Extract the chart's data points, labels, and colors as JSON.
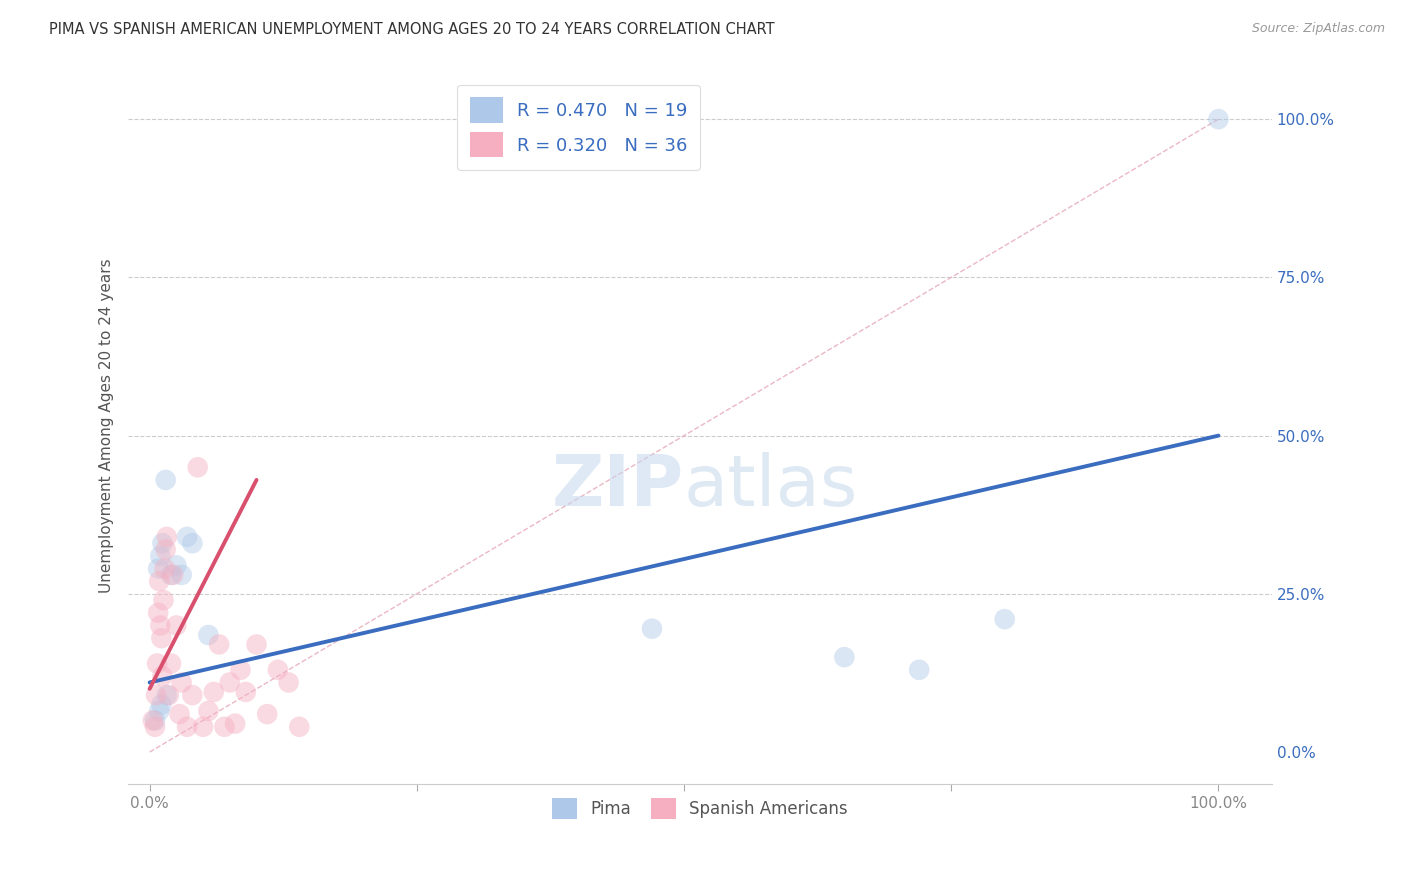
{
  "title": "PIMA VS SPANISH AMERICAN UNEMPLOYMENT AMONG AGES 20 TO 24 YEARS CORRELATION CHART",
  "source": "Source: ZipAtlas.com",
  "ylabel": "Unemployment Among Ages 20 to 24 years",
  "watermark_zip": "ZIP",
  "watermark_atlas": "atlas",
  "pima_R": 0.47,
  "pima_N": 19,
  "spanish_R": 0.32,
  "spanish_N": 36,
  "pima_color": "#adc8e8",
  "pima_line_color": "#3a6dbf",
  "spanish_color": "#f5afc0",
  "spanish_line_color": "#d94f6e",
  "legend_text_color": "#3a6dbf",
  "axis_tick_color": "#888888",
  "title_color": "#333333",
  "grid_color": "#cccccc",
  "background_color": "#ffffff",
  "pima_x": [
    1.5,
    1.2,
    1.0,
    0.8,
    3.5,
    2.5,
    3.0,
    4.0,
    2.0,
    47.0,
    65.0,
    72.0,
    80.0,
    100.0,
    0.5,
    0.9,
    1.1,
    1.6,
    5.5
  ],
  "pima_y": [
    43.0,
    33.0,
    31.0,
    29.0,
    34.0,
    29.5,
    28.0,
    33.0,
    28.0,
    19.5,
    15.0,
    13.0,
    21.0,
    100.0,
    5.0,
    6.5,
    7.5,
    9.0,
    18.5
  ],
  "spanish_x": [
    0.3,
    0.5,
    0.6,
    0.7,
    0.8,
    0.9,
    1.0,
    1.1,
    1.2,
    1.3,
    1.4,
    1.5,
    1.6,
    1.8,
    2.0,
    2.2,
    2.5,
    2.8,
    3.0,
    3.5,
    4.0,
    4.5,
    5.0,
    5.5,
    6.0,
    6.5,
    7.0,
    7.5,
    8.0,
    8.5,
    9.0,
    10.0,
    11.0,
    12.0,
    13.0,
    14.0
  ],
  "spanish_y": [
    5.0,
    4.0,
    9.0,
    14.0,
    22.0,
    27.0,
    20.0,
    18.0,
    12.0,
    24.0,
    29.0,
    32.0,
    34.0,
    9.0,
    14.0,
    28.0,
    20.0,
    6.0,
    11.0,
    4.0,
    9.0,
    45.0,
    4.0,
    6.5,
    9.5,
    17.0,
    4.0,
    11.0,
    4.5,
    13.0,
    9.5,
    17.0,
    6.0,
    13.0,
    11.0,
    4.0
  ],
  "xlim": [
    -2,
    105
  ],
  "ylim": [
    -5,
    108
  ],
  "xticks": [
    0,
    25,
    50,
    75,
    100
  ],
  "xticklabels": [
    "0.0%",
    "",
    "",
    "",
    "100.0%"
  ],
  "right_yticks": [
    0,
    25,
    50,
    75,
    100
  ],
  "right_yticklabels": [
    "0.0%",
    "25.0%",
    "50.0%",
    "75.0%",
    "100.0%"
  ],
  "pima_line_x0": 0,
  "pima_line_y0": 11.0,
  "pima_line_x1": 100,
  "pima_line_y1": 50.0,
  "spanish_line_x0": 0,
  "spanish_line_y0": 10.0,
  "spanish_line_x1": 10,
  "spanish_line_y1": 43.0,
  "diag_color": "#e8b0be",
  "marker_size": 220,
  "marker_alpha": 0.45,
  "line_width": 2.8
}
